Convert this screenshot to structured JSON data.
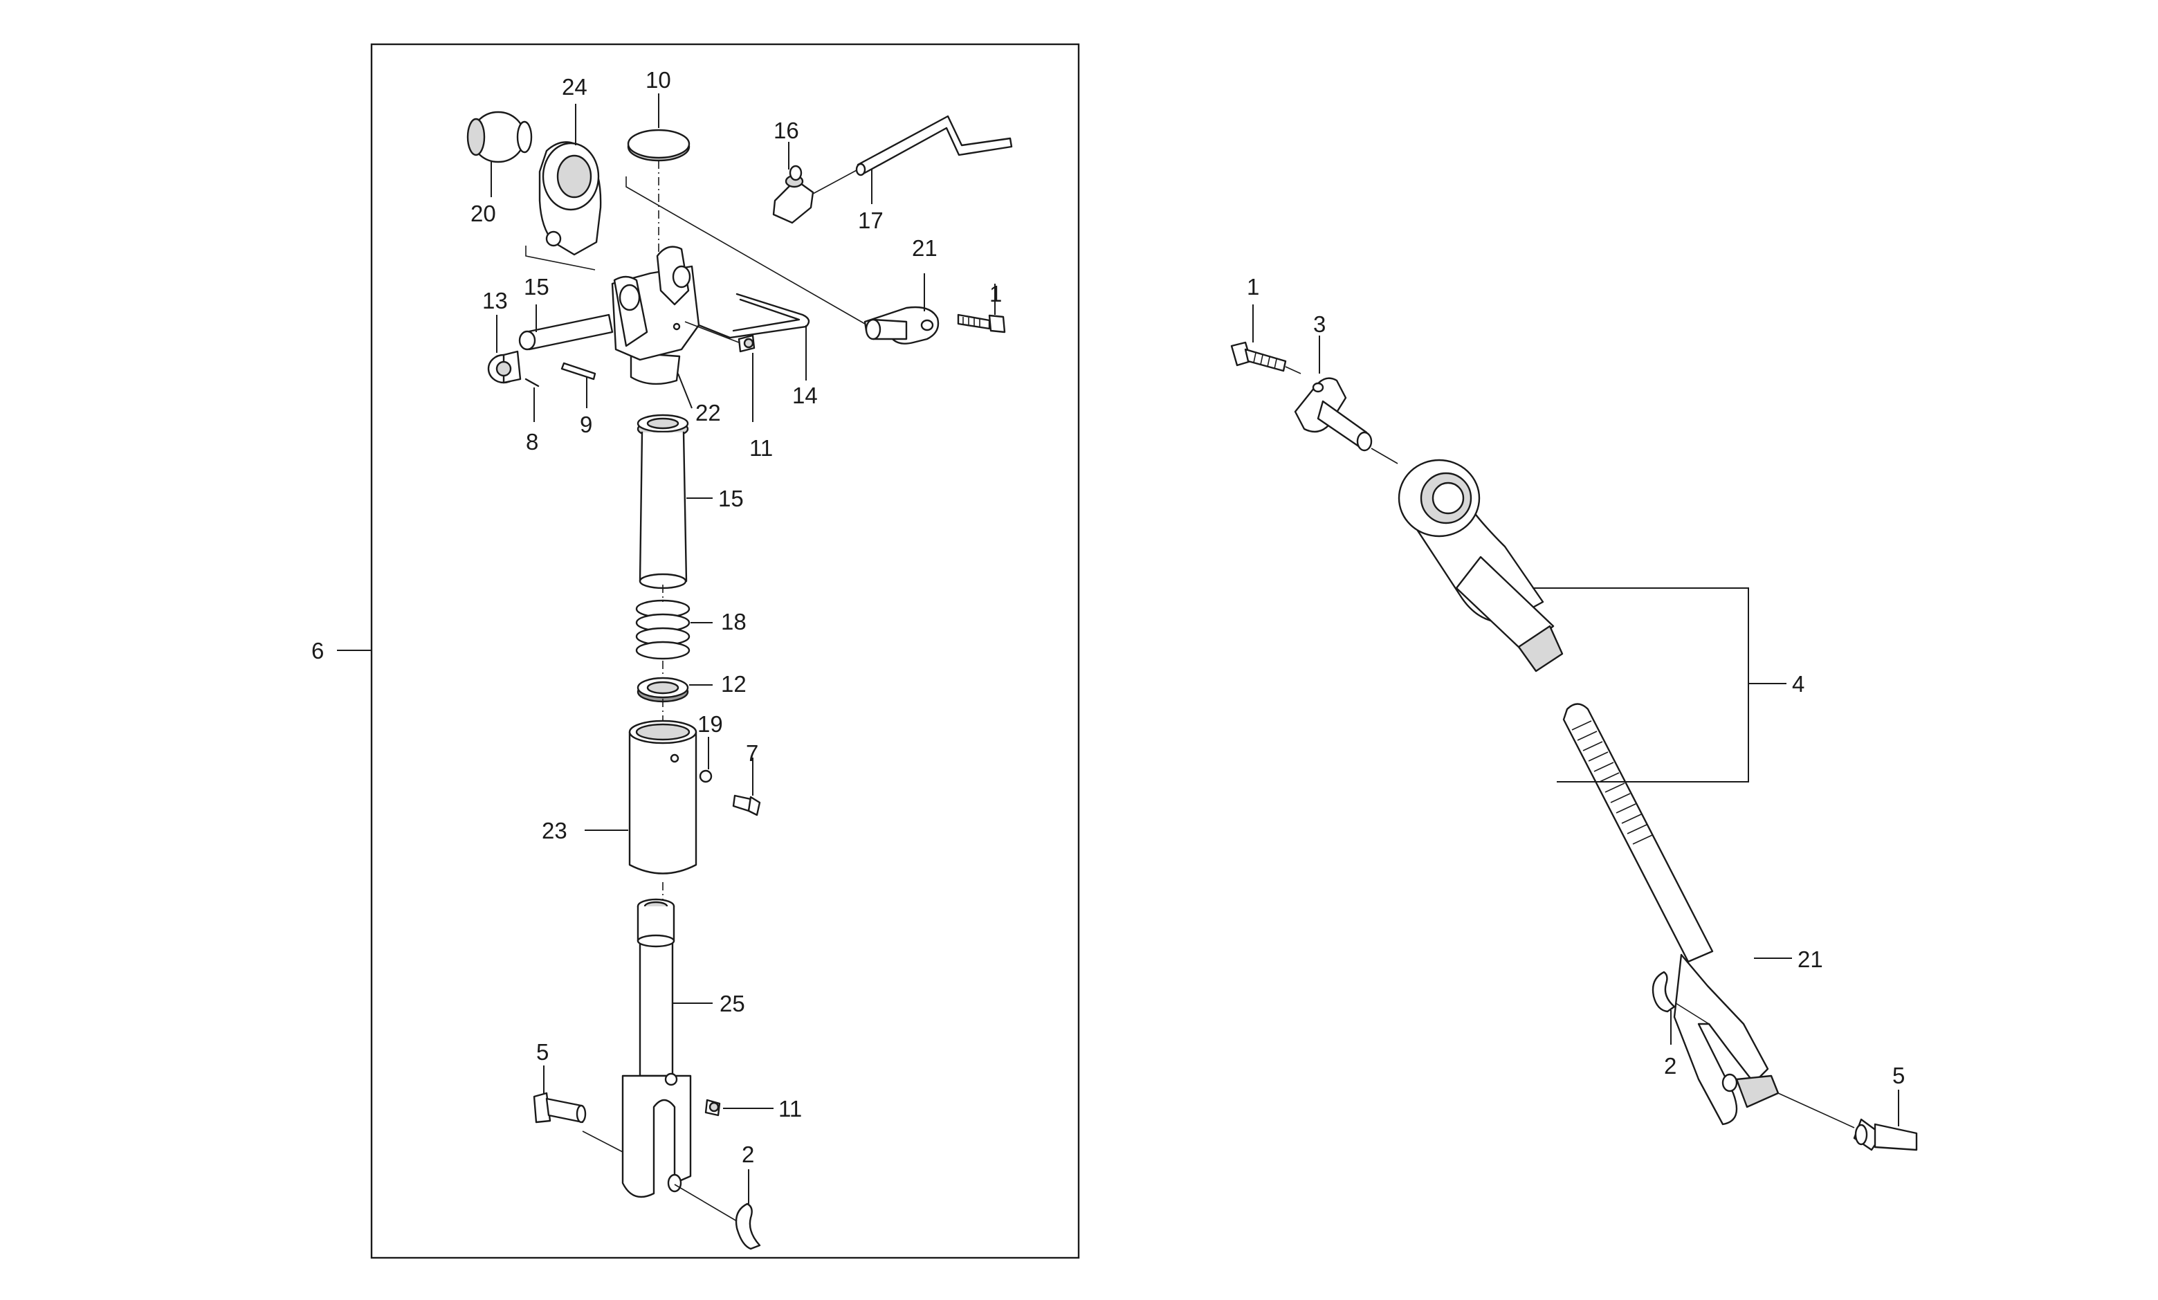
{
  "diagram": {
    "group_frame_label": "6",
    "assembly_bracket_label": "4",
    "callouts_left": [
      {
        "id": "24",
        "label": "24"
      },
      {
        "id": "10",
        "label": "10"
      },
      {
        "id": "20",
        "label": "20"
      },
      {
        "id": "16",
        "label": "16"
      },
      {
        "id": "17",
        "label": "17"
      },
      {
        "id": "21",
        "label": "21"
      },
      {
        "id": "1",
        "label": "1"
      },
      {
        "id": "13",
        "label": "13"
      },
      {
        "id": "15a",
        "label": "15"
      },
      {
        "id": "14",
        "label": "14"
      },
      {
        "id": "22",
        "label": "22"
      },
      {
        "id": "11a",
        "label": "11"
      },
      {
        "id": "8",
        "label": "8"
      },
      {
        "id": "9",
        "label": "9"
      },
      {
        "id": "15b",
        "label": "15"
      },
      {
        "id": "18",
        "label": "18"
      },
      {
        "id": "12",
        "label": "12"
      },
      {
        "id": "19",
        "label": "19"
      },
      {
        "id": "7",
        "label": "7"
      },
      {
        "id": "23",
        "label": "23"
      },
      {
        "id": "25",
        "label": "25"
      },
      {
        "id": "5a",
        "label": "5"
      },
      {
        "id": "11b",
        "label": "11"
      },
      {
        "id": "2a",
        "label": "2"
      }
    ],
    "callouts_right": [
      {
        "id": "1r",
        "label": "1"
      },
      {
        "id": "3",
        "label": "3"
      },
      {
        "id": "21r",
        "label": "21"
      },
      {
        "id": "2r",
        "label": "2"
      },
      {
        "id": "5r",
        "label": "5"
      }
    ]
  }
}
